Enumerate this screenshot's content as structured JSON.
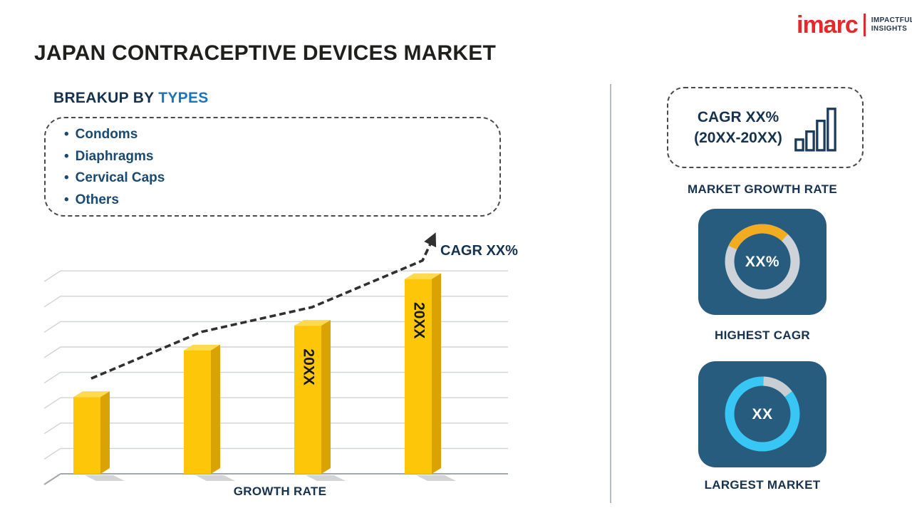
{
  "page": {
    "title": "JAPAN CONTRACEPTIVE DEVICES MARKET"
  },
  "logo": {
    "brand": "imarc",
    "tagline1": "IMPACTFUL",
    "tagline2": "INSIGHTS"
  },
  "breakup": {
    "heading": "BREAKUP BY",
    "heading_accent": "TYPES",
    "items": [
      "Condoms",
      "Diaphragms",
      "Cervical Caps",
      "Others"
    ]
  },
  "chart_data": {
    "type": "bar",
    "title": "",
    "xlabel": "GROWTH RATE",
    "ylabel": "",
    "categories": [
      "",
      "",
      "20XX",
      "20XX"
    ],
    "bar_labels_visible": [
      "",
      "",
      "20XX",
      "20XX"
    ],
    "values": [
      28,
      45,
      54,
      71
    ],
    "ylim": [
      0,
      90
    ],
    "gridlines": 9,
    "axis_tick_labels_shown": false,
    "trend": {
      "style": "dashed-arrow",
      "label": "CAGR XX%"
    },
    "colors": {
      "bar_front": "#FDC608",
      "bar_top": "#FFD94F",
      "bar_side": "#D9A303"
    }
  },
  "right_panel": {
    "growth_box": {
      "line1": "CAGR XX%",
      "line2": "(20XX-20XX)"
    },
    "growth_label": "MARKET GROWTH RATE",
    "highest_cagr": {
      "value": "XX%",
      "label": "HIGHEST CAGR",
      "ring_color": "#F2AC1F",
      "ring_bg": "#CDD3D8"
    },
    "largest_market": {
      "value": "XX",
      "label": "LARGEST MARKET",
      "ring_color": "#38C6F4",
      "ring_bg": "#C9CED2"
    }
  },
  "colors": {
    "navy": "#16324F",
    "accent_blue": "#1A75BC",
    "tile_bg": "#275C7E",
    "brand_red": "#E4282B",
    "divider": "#B6BCC1",
    "trend_line": "#303030"
  }
}
